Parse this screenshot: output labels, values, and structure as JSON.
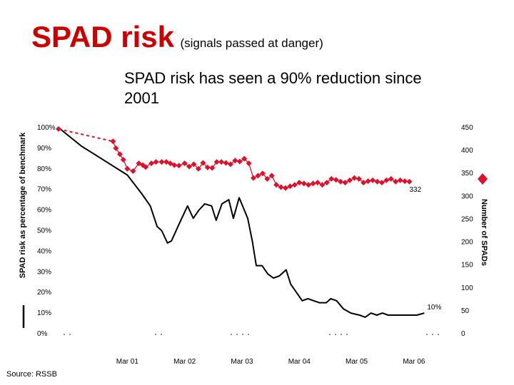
{
  "slide": {
    "title": "SPAD risk",
    "subtitle": "(signals passed at danger)",
    "source": "Source: RSSB"
  },
  "colors": {
    "title": "#cc0000",
    "risk_line": "#000000",
    "spad_series": "#e0102a"
  },
  "legend_icons": [
    "black-line-icon",
    "red-diamond-icon"
  ],
  "chart_data": {
    "type": "line",
    "title": "SPAD risk has seen a 90% reduction since 2001",
    "ylabel_left": "SPAD risk as percentage of benchmark",
    "ylabel_right": "Number of SPADs",
    "left_axis": {
      "ylim": [
        0,
        100
      ],
      "tick_labels": [
        "0%",
        "10%",
        "20%",
        "30%",
        "40%",
        "50%",
        "60%",
        "70%",
        "80%",
        "90%",
        "100%"
      ]
    },
    "right_axis": {
      "ylim": [
        0,
        450
      ],
      "tick_labels": [
        "0",
        "50",
        "100",
        "150",
        "200",
        "250",
        "300",
        "350",
        "400",
        "450"
      ]
    },
    "x_tick_labels": [
      "Mar 01",
      "Mar 02",
      "Mar 03",
      "Mar 04",
      "Mar 05",
      "Mar 06"
    ],
    "x_tick_positions": [
      2001.2,
      2002.2,
      2003.2,
      2004.2,
      2005.2,
      2006.2
    ],
    "x_range": [
      2000.0,
      2006.6
    ],
    "grid": false,
    "series": [
      {
        "axis": "left",
        "style": "line",
        "end_label": "10%",
        "x": [
          2000.0,
          2000.4,
          2000.8,
          2001.2,
          2001.45,
          2001.6,
          2001.72,
          2001.8,
          2001.9,
          2001.97,
          2002.1,
          2002.25,
          2002.35,
          2002.45,
          2002.55,
          2002.67,
          2002.75,
          2002.85,
          2002.97,
          2003.05,
          2003.15,
          2003.3,
          2003.38,
          2003.45,
          2003.55,
          2003.65,
          2003.75,
          2003.85,
          2003.97,
          2004.05,
          2004.15,
          2004.25,
          2004.35,
          2004.45,
          2004.55,
          2004.67,
          2004.75,
          2004.85,
          2004.97,
          2005.1,
          2005.25,
          2005.35,
          2005.45,
          2005.55,
          2005.65,
          2005.75,
          2005.85,
          2005.97,
          2006.1,
          2006.25,
          2006.38
        ],
        "y": [
          100,
          91,
          84,
          77,
          68,
          62,
          52,
          50,
          44,
          45,
          53,
          62,
          56,
          60,
          63,
          62,
          55,
          63,
          65,
          56,
          66,
          56,
          45,
          33,
          33,
          29,
          27,
          28,
          31,
          24,
          20,
          16,
          17,
          16,
          15,
          15,
          17,
          16,
          12,
          10,
          9,
          8,
          10,
          9,
          10,
          9,
          9,
          9,
          9,
          9,
          10
        ]
      },
      {
        "axis": "right",
        "style": "diamond-markers",
        "end_label": "332",
        "x": [
          2000.0,
          2000.95,
          2001.0,
          2001.07,
          2001.13,
          2001.2,
          2001.3,
          2001.4,
          2001.47,
          2001.52,
          2001.62,
          2001.7,
          2001.8,
          2001.88,
          2001.95,
          2002.02,
          2002.1,
          2002.2,
          2002.28,
          2002.36,
          2002.44,
          2002.52,
          2002.6,
          2002.68,
          2002.76,
          2002.84,
          2002.92,
          2003.0,
          2003.08,
          2003.16,
          2003.24,
          2003.32,
          2003.4,
          2003.48,
          2003.56,
          2003.64,
          2003.72,
          2003.8,
          2003.88,
          2003.96,
          2004.04,
          2004.12,
          2004.2,
          2004.28,
          2004.36,
          2004.44,
          2004.52,
          2004.6,
          2004.68,
          2004.76,
          2004.84,
          2004.92,
          2005.0,
          2005.08,
          2005.16,
          2005.24,
          2005.32,
          2005.4,
          2005.48,
          2005.56,
          2005.64,
          2005.72,
          2005.8,
          2005.88,
          2005.96,
          2006.04,
          2006.12
        ],
        "y": [
          447,
          420,
          405,
          392,
          380,
          360,
          355,
          372,
          368,
          364,
          372,
          375,
          375,
          375,
          372,
          368,
          367,
          372,
          365,
          370,
          360,
          373,
          363,
          362,
          375,
          375,
          373,
          370,
          378,
          376,
          382,
          372,
          340,
          345,
          350,
          338,
          345,
          325,
          320,
          318,
          322,
          325,
          330,
          328,
          325,
          328,
          330,
          325,
          330,
          338,
          336,
          332,
          330,
          335,
          340,
          338,
          330,
          333,
          335,
          332,
          330,
          335,
          338,
          332,
          335,
          333,
          332
        ]
      }
    ]
  }
}
